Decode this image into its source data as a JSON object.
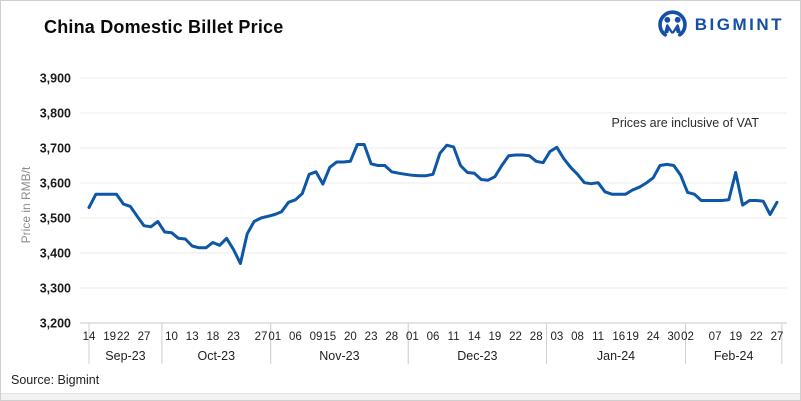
{
  "header": {
    "title": "China Domestic Billet Price",
    "logo_text": "BIGMINT",
    "logo_color": "#1450a5"
  },
  "annotation": "Prices are inclusive of VAT",
  "source": "Source: Bigmint",
  "chart_data": {
    "type": "line",
    "title": "China Domestic Billet Price",
    "xlabel": "",
    "ylabel": "Price in RMB/t",
    "ylim": [
      3200,
      3900
    ],
    "grid": "horizontal-light",
    "legend_position": "none",
    "line_color": "#0d57a6",
    "grid_color": "#ebebeb",
    "axis_color": "#c9c9c9",
    "separator_color": "#d2d2d2",
    "y_ticks": [
      {
        "v": 3900,
        "label": "3,900"
      },
      {
        "v": 3800,
        "label": "3,800"
      },
      {
        "v": 3700,
        "label": "3,700"
      },
      {
        "v": 3600,
        "label": "3,600"
      },
      {
        "v": 3500,
        "label": "3,500"
      },
      {
        "v": 3400,
        "label": "3,400"
      },
      {
        "v": 3300,
        "label": "3,300"
      },
      {
        "v": 3200,
        "label": "3,200"
      }
    ],
    "months": [
      {
        "label": "Sep-23",
        "from": 0,
        "to": 10.6
      },
      {
        "label": "Oct-23",
        "from": 10.6,
        "to": 26.4
      },
      {
        "label": "Nov-23",
        "from": 26.4,
        "to": 46.4
      },
      {
        "label": "Dec-23",
        "from": 46.4,
        "to": 66.5
      },
      {
        "label": "Jan-24",
        "from": 66.5,
        "to": 86.7
      },
      {
        "label": "Feb-24",
        "from": 86.7,
        "to": 100.7
      }
    ],
    "x_ticks": [
      {
        "label": "14",
        "month": "Sep-23",
        "index": 0
      },
      {
        "label": "19",
        "month": "Sep-23",
        "index": 3
      },
      {
        "label": "22",
        "month": "Sep-23",
        "index": 5
      },
      {
        "label": "27",
        "month": "Sep-23",
        "index": 8
      },
      {
        "label": "10",
        "month": "Oct-23",
        "index": 12
      },
      {
        "label": "13",
        "month": "Oct-23",
        "index": 15
      },
      {
        "label": "18",
        "month": "Oct-23",
        "index": 18
      },
      {
        "label": "23",
        "month": "Oct-23",
        "index": 21
      },
      {
        "label": "27",
        "month": "Oct-23",
        "index": 25
      },
      {
        "label": "01",
        "month": "Nov-23",
        "index": 27
      },
      {
        "label": "06",
        "month": "Nov-23",
        "index": 30
      },
      {
        "label": "09",
        "month": "Nov-23",
        "index": 33
      },
      {
        "label": "15",
        "month": "Nov-23",
        "index": 35
      },
      {
        "label": "20",
        "month": "Nov-23",
        "index": 38
      },
      {
        "label": "23",
        "month": "Nov-23",
        "index": 41
      },
      {
        "label": "28",
        "month": "Nov-23",
        "index": 44
      },
      {
        "label": "01",
        "month": "Dec-23",
        "index": 47
      },
      {
        "label": "06",
        "month": "Dec-23",
        "index": 50
      },
      {
        "label": "11",
        "month": "Dec-23",
        "index": 53
      },
      {
        "label": "14",
        "month": "Dec-23",
        "index": 56
      },
      {
        "label": "19",
        "month": "Dec-23",
        "index": 59
      },
      {
        "label": "22",
        "month": "Dec-23",
        "index": 62
      },
      {
        "label": "28",
        "month": "Dec-23",
        "index": 65
      },
      {
        "label": "03",
        "month": "Jan-24",
        "index": 68
      },
      {
        "label": "08",
        "month": "Jan-24",
        "index": 71
      },
      {
        "label": "11",
        "month": "Jan-24",
        "index": 74
      },
      {
        "label": "16",
        "month": "Jan-24",
        "index": 77
      },
      {
        "label": "19",
        "month": "Jan-24",
        "index": 79
      },
      {
        "label": "24",
        "month": "Jan-24",
        "index": 82
      },
      {
        "label": "30",
        "month": "Jan-24",
        "index": 85
      },
      {
        "label": "02",
        "month": "Feb-24",
        "index": 87
      },
      {
        "label": "07",
        "month": "Feb-24",
        "index": 91
      },
      {
        "label": "19",
        "month": "Feb-24",
        "index": 94
      },
      {
        "label": "22",
        "month": "Feb-24",
        "index": 97
      },
      {
        "label": "27",
        "month": "Feb-24",
        "index": 100
      }
    ],
    "values": [
      3530,
      3568,
      3568,
      3568,
      3568,
      3540,
      3533,
      3505,
      3478,
      3475,
      3490,
      3460,
      3458,
      3442,
      3440,
      3420,
      3415,
      3415,
      3430,
      3422,
      3442,
      3410,
      3370,
      3455,
      3490,
      3500,
      3505,
      3510,
      3518,
      3545,
      3552,
      3570,
      3625,
      3632,
      3597,
      3645,
      3660,
      3660,
      3662,
      3710,
      3710,
      3655,
      3650,
      3650,
      3632,
      3628,
      3625,
      3622,
      3621,
      3621,
      3625,
      3685,
      3708,
      3703,
      3650,
      3630,
      3628,
      3610,
      3608,
      3618,
      3650,
      3678,
      3680,
      3680,
      3678,
      3662,
      3658,
      3690,
      3702,
      3670,
      3645,
      3625,
      3601,
      3598,
      3601,
      3575,
      3568,
      3568,
      3568,
      3580,
      3588,
      3600,
      3615,
      3650,
      3653,
      3650,
      3622,
      3573,
      3568,
      3550,
      3550,
      3550,
      3550,
      3552,
      3630,
      3537,
      3550,
      3550,
      3548,
      3510,
      3545
    ]
  }
}
